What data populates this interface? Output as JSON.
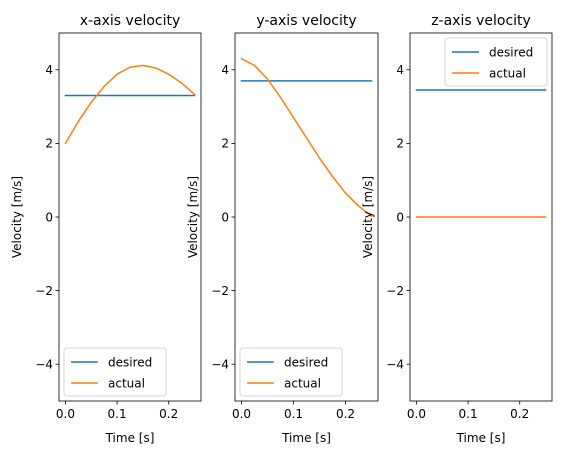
{
  "chart_data": [
    {
      "type": "line",
      "title": "x-axis velocity",
      "xlabel": "Time [s]",
      "ylabel": "Velocity [m/s]",
      "xlim": [
        -0.0125,
        0.2625
      ],
      "ylim": [
        -5,
        5
      ],
      "xticks": [
        0.0,
        0.1,
        0.2
      ],
      "xtick_labels": [
        "0.0",
        "0.1",
        "0.2"
      ],
      "yticks": [
        -4,
        -2,
        0,
        2,
        4
      ],
      "ytick_labels": [
        "−4",
        "−2",
        "0",
        "2",
        "4"
      ],
      "legend": "lower-left",
      "grid": false,
      "series": [
        {
          "name": "desired",
          "color": "#1f77b4",
          "x": [
            0.0,
            0.25
          ],
          "y": [
            3.3,
            3.3
          ]
        },
        {
          "name": "actual",
          "color": "#ff7f0e",
          "x": [
            0.0,
            0.025,
            0.05,
            0.075,
            0.1,
            0.125,
            0.15,
            0.175,
            0.2,
            0.225,
            0.25
          ],
          "y": [
            2.0,
            2.6,
            3.12,
            3.55,
            3.88,
            4.07,
            4.12,
            4.05,
            3.88,
            3.64,
            3.33
          ]
        }
      ]
    },
    {
      "type": "line",
      "title": "y-axis velocity",
      "xlabel": "Time [s]",
      "ylabel": "Velocity [m/s]",
      "xlim": [
        -0.0125,
        0.2625
      ],
      "ylim": [
        -5,
        5
      ],
      "xticks": [
        0.0,
        0.1,
        0.2
      ],
      "xtick_labels": [
        "0.0",
        "0.1",
        "0.2"
      ],
      "yticks": [
        -4,
        -2,
        0,
        2,
        4
      ],
      "ytick_labels": [
        "−4",
        "−2",
        "0",
        "2",
        "4"
      ],
      "legend": "lower-left",
      "grid": false,
      "series": [
        {
          "name": "desired",
          "color": "#1f77b4",
          "x": [
            0.0,
            0.25
          ],
          "y": [
            3.7,
            3.7
          ]
        },
        {
          "name": "actual",
          "color": "#ff7f0e",
          "x": [
            0.0,
            0.025,
            0.05,
            0.075,
            0.1,
            0.125,
            0.15,
            0.175,
            0.2,
            0.225,
            0.25
          ],
          "y": [
            4.3,
            4.12,
            3.75,
            3.25,
            2.7,
            2.15,
            1.6,
            1.1,
            0.65,
            0.3,
            0.02
          ]
        }
      ]
    },
    {
      "type": "line",
      "title": "z-axis velocity",
      "xlabel": "Time [s]",
      "ylabel": "Velocity [m/s]",
      "xlim": [
        -0.0125,
        0.2625
      ],
      "ylim": [
        -5,
        5
      ],
      "xticks": [
        0.0,
        0.1,
        0.2
      ],
      "xtick_labels": [
        "0.0",
        "0.1",
        "0.2"
      ],
      "yticks": [
        -4,
        -2,
        0,
        2,
        4
      ],
      "ytick_labels": [
        "−4",
        "−2",
        "0",
        "2",
        "4"
      ],
      "legend": "top-right",
      "grid": false,
      "series": [
        {
          "name": "desired",
          "color": "#1f77b4",
          "x": [
            0.0,
            0.25
          ],
          "y": [
            3.45,
            3.45
          ]
        },
        {
          "name": "actual",
          "color": "#ff7f0e",
          "x": [
            0.0,
            0.25
          ],
          "y": [
            0.0,
            0.0
          ]
        }
      ]
    }
  ]
}
